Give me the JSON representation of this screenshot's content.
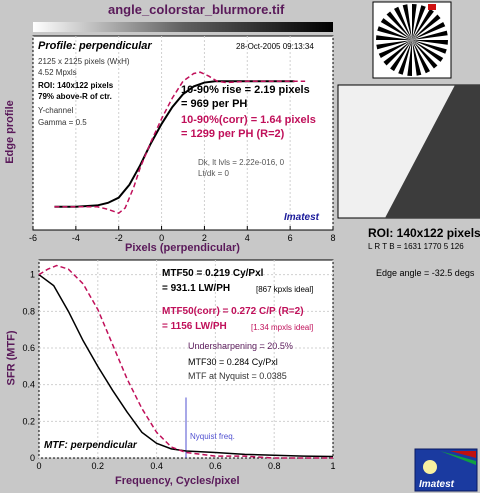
{
  "title": "angle_colorstar_blurmore.tif",
  "top_plot": {
    "label": "Profile: perpendicular",
    "date": "28-Oct-2005 09:13:34",
    "info": [
      "2125 x 2125 pixels (WxH)",
      "4.52 Mpxls"
    ],
    "roi_info": [
      "ROI: 140x122 pixels",
      "79% above-R of ctr."
    ],
    "channel_info": [
      "Y-channel",
      "Gamma = 0.5"
    ],
    "rise": [
      "10-90% rise = 2.19 pixels",
      "= 969 per PH"
    ],
    "rise_corr": [
      "10-90%(corr) = 1.64 pixels",
      "= 1299 per PH  (R=2)"
    ],
    "dk": [
      "Dk, lt lvls = 2.22e-016, 0",
      "Lt/dk = 0"
    ],
    "brand": "Imatest",
    "xlabel": "Pixels (perpendicular)",
    "ylabel": "Edge profile"
  },
  "bottom_plot": {
    "label": "MTF: perpendicular",
    "mtf50": [
      "MTF50 = 0.219 Cy/Pxl",
      "= 931.1 LW/PH",
      "[867 kpxls ideal]"
    ],
    "mtf50_corr": [
      "MTF50(corr) = 0.272 C/P  (R=2)",
      "= 1156 LW/PH",
      "[1.34 mpxls ideal]"
    ],
    "undersharpening": "Undersharpening = 20.5%",
    "mtf30": "MTF30 = 0.284 Cy/Pxl",
    "nyquist_mtf": "MTF at Nyquist = 0.0385",
    "nyquist_label": "Nyquist freq.",
    "xlabel": "Frequency, Cycles/pixel",
    "ylabel": "SFR (MTF)"
  },
  "roi": {
    "title": "ROI: 140x122 pixels",
    "coords": "L R T B = 1631 1770  5 126",
    "edge_angle": "Edge angle = -32.5 degs"
  },
  "logo": {
    "text": "Imatest"
  },
  "colors": {
    "text_dark": "#5a1a5a",
    "corrected": "#c0105a",
    "uncorrected": "#000000",
    "nyquist": "#5050d0"
  },
  "chart_data": [
    {
      "type": "line",
      "xlabel": "Pixels (perpendicular)",
      "ylabel": "Edge profile",
      "xlim": [
        -6,
        8
      ],
      "x_ticks": [
        -6,
        -4,
        -2,
        0,
        2,
        4,
        6,
        8
      ],
      "series": [
        {
          "x": [
            -5,
            -4,
            -3,
            -2.5,
            -2,
            -1.5,
            -1,
            -0.5,
            0,
            0.5,
            1,
            1.5,
            2,
            2.5,
            3,
            4,
            5,
            6.2
          ],
          "y": [
            0.03,
            0.03,
            0.04,
            0.06,
            0.1,
            0.2,
            0.35,
            0.52,
            0.67,
            0.8,
            0.9,
            0.96,
            0.99,
            1.0,
            1.0,
            1.0,
            1.0,
            1.0
          ]
        },
        {
          "x": [
            -5,
            -4,
            -3,
            -2.5,
            -2,
            -1.7,
            -1.3,
            -1,
            -0.5,
            0,
            0.5,
            1,
            1.5,
            1.8,
            2.2,
            2.6,
            3,
            4,
            5,
            6.7
          ],
          "y": [
            0.03,
            0.03,
            0.03,
            0.01,
            -0.02,
            0.02,
            0.18,
            0.33,
            0.53,
            0.71,
            0.87,
            1.0,
            1.06,
            1.07,
            1.04,
            1.0,
            0.99,
            1.0,
            1.0,
            1.0
          ]
        }
      ]
    },
    {
      "type": "line",
      "xlabel": "Frequency, Cycles/pixel",
      "ylabel": "SFR (MTF)",
      "xlim": [
        0,
        1
      ],
      "ylim": [
        0,
        1.05
      ],
      "x_ticks": [
        0,
        0.2,
        0.4,
        0.6,
        0.8,
        1
      ],
      "y_ticks": [
        0,
        0.2,
        0.4,
        0.6,
        0.8,
        1
      ],
      "nyquist": 0.5,
      "series": [
        {
          "x": [
            0,
            0.05,
            0.1,
            0.15,
            0.2,
            0.25,
            0.3,
            0.35,
            0.4,
            0.45,
            0.5,
            0.6,
            0.7,
            0.8,
            0.9,
            1.0
          ],
          "y": [
            1.0,
            0.94,
            0.8,
            0.64,
            0.5,
            0.37,
            0.25,
            0.14,
            0.08,
            0.05,
            0.038,
            0.03,
            0.02,
            0.015,
            0.01,
            0.008
          ]
        },
        {
          "x": [
            0,
            0.03,
            0.06,
            0.1,
            0.15,
            0.2,
            0.25,
            0.3,
            0.35,
            0.4,
            0.45,
            0.5,
            0.55,
            0.6,
            0.7,
            0.8,
            0.9,
            1.0
          ],
          "y": [
            1.0,
            1.03,
            1.05,
            1.03,
            0.95,
            0.81,
            0.62,
            0.43,
            0.27,
            0.14,
            0.06,
            0.03,
            0.02,
            0.01,
            0.01,
            0.0,
            0.0,
            0.0
          ]
        }
      ]
    }
  ]
}
